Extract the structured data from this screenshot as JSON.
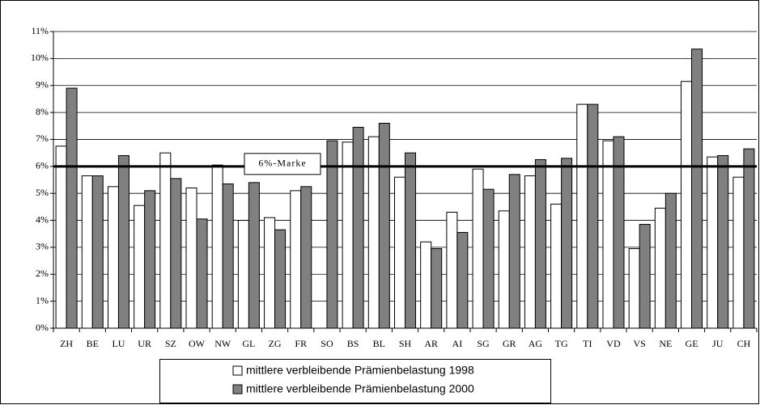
{
  "chart_data": {
    "type": "bar",
    "categories": [
      "ZH",
      "BE",
      "LU",
      "UR",
      "SZ",
      "OW",
      "NW",
      "GL",
      "ZG",
      "FR",
      "SO",
      "BS",
      "BL",
      "SH",
      "AR",
      "AI",
      "SG",
      "GR",
      "AG",
      "TG",
      "TI",
      "VD",
      "VS",
      "NE",
      "GE",
      "JU",
      "CH"
    ],
    "series": [
      {
        "name": "mittlere verbleibende Prämienbelastung 1998",
        "color": "#ffffff",
        "values": [
          6.75,
          5.65,
          5.25,
          4.55,
          6.5,
          5.2,
          6.05,
          4.0,
          4.1,
          5.1,
          null,
          6.9,
          7.1,
          5.6,
          3.2,
          4.3,
          5.9,
          4.35,
          5.65,
          4.6,
          8.3,
          6.95,
          2.95,
          4.45,
          9.15,
          6.35,
          5.6
        ]
      },
      {
        "name": "mittlere verbleibende Prämienbelastung 2000",
        "color": "#808080",
        "values": [
          8.9,
          5.65,
          6.4,
          5.1,
          5.55,
          4.05,
          5.35,
          5.4,
          3.65,
          5.25,
          6.95,
          7.45,
          7.6,
          6.5,
          2.95,
          3.55,
          5.15,
          5.7,
          6.25,
          6.3,
          8.3,
          7.1,
          3.85,
          5.0,
          10.35,
          6.4,
          6.65
        ]
      }
    ],
    "ylim": [
      0,
      11
    ],
    "yticks": [
      {
        "value": 0,
        "label": "0%"
      },
      {
        "value": 1,
        "label": "1%"
      },
      {
        "value": 2,
        "label": "2%"
      },
      {
        "value": 3,
        "label": "3%"
      },
      {
        "value": 4,
        "label": "4%"
      },
      {
        "value": 5,
        "label": "5%"
      },
      {
        "value": 6,
        "label": "6%"
      },
      {
        "value": 7,
        "label": "7%"
      },
      {
        "value": 8,
        "label": "8%"
      },
      {
        "value": 9,
        "label": "9%"
      },
      {
        "value": 10,
        "label": "10%"
      },
      {
        "value": 11,
        "label": "11%"
      }
    ],
    "grid": true,
    "reference_line": {
      "value": 6,
      "label": "6%-Marke"
    }
  }
}
